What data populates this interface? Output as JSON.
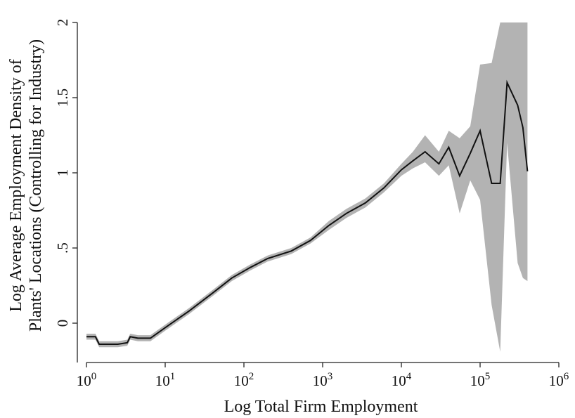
{
  "chart_data": {
    "type": "line",
    "xlabel": "Log Total Firm Employment",
    "ylabel_lines": [
      "Log Average Employment Density of",
      "Plants' Locations (Controlling for Industry)"
    ],
    "xscale": "log",
    "xlim": [
      0.9,
      1000000
    ],
    "ylim": [
      -0.27,
      2
    ],
    "grid": false,
    "legend": "none",
    "colors": {
      "line": "#111111",
      "band": "#b3b3b3"
    },
    "x_ticks": [
      {
        "value": 1,
        "base": "10",
        "exp": "0"
      },
      {
        "value": 10,
        "base": "10",
        "exp": "1"
      },
      {
        "value": 100,
        "base": "10",
        "exp": "2"
      },
      {
        "value": 1000,
        "base": "10",
        "exp": "3"
      },
      {
        "value": 10000,
        "base": "10",
        "exp": "4"
      },
      {
        "value": 100000,
        "base": "10",
        "exp": "5"
      },
      {
        "value": 1000000,
        "base": "10",
        "exp": "6"
      }
    ],
    "y_ticks": [
      {
        "value": 0,
        "label": "0"
      },
      {
        "value": 0.5,
        "label": ".5"
      },
      {
        "value": 1,
        "label": "1"
      },
      {
        "value": 1.5,
        "label": "1.5"
      },
      {
        "value": 2,
        "label": "2"
      }
    ],
    "series": [
      {
        "points": [
          {
            "x": 1,
            "y": -0.09,
            "lo": -0.11,
            "hi": -0.07
          },
          {
            "x": 1.3,
            "y": -0.09,
            "lo": -0.11,
            "hi": -0.07
          },
          {
            "x": 1.45,
            "y": -0.14,
            "lo": -0.16,
            "hi": -0.12
          },
          {
            "x": 2.5,
            "y": -0.14,
            "lo": -0.16,
            "hi": -0.12
          },
          {
            "x": 3.3,
            "y": -0.13,
            "lo": -0.15,
            "hi": -0.11
          },
          {
            "x": 3.6,
            "y": -0.09,
            "lo": -0.11,
            "hi": -0.07
          },
          {
            "x": 4.5,
            "y": -0.1,
            "lo": -0.12,
            "hi": -0.08
          },
          {
            "x": 6.5,
            "y": -0.1,
            "lo": -0.12,
            "hi": -0.08
          },
          {
            "x": 10,
            "y": -0.03,
            "lo": -0.05,
            "hi": -0.01
          },
          {
            "x": 20,
            "y": 0.08,
            "lo": 0.06,
            "hi": 0.1
          },
          {
            "x": 40,
            "y": 0.2,
            "lo": 0.18,
            "hi": 0.22
          },
          {
            "x": 70,
            "y": 0.3,
            "lo": 0.28,
            "hi": 0.32
          },
          {
            "x": 120,
            "y": 0.37,
            "lo": 0.35,
            "hi": 0.39
          },
          {
            "x": 200,
            "y": 0.43,
            "lo": 0.41,
            "hi": 0.45
          },
          {
            "x": 400,
            "y": 0.48,
            "lo": 0.46,
            "hi": 0.5
          },
          {
            "x": 700,
            "y": 0.55,
            "lo": 0.53,
            "hi": 0.57
          },
          {
            "x": 1200,
            "y": 0.65,
            "lo": 0.62,
            "hi": 0.68
          },
          {
            "x": 2000,
            "y": 0.73,
            "lo": 0.7,
            "hi": 0.76
          },
          {
            "x": 3500,
            "y": 0.8,
            "lo": 0.77,
            "hi": 0.83
          },
          {
            "x": 6000,
            "y": 0.9,
            "lo": 0.87,
            "hi": 0.93
          },
          {
            "x": 10000,
            "y": 1.02,
            "lo": 0.98,
            "hi": 1.06
          },
          {
            "x": 14000,
            "y": 1.08,
            "lo": 1.03,
            "hi": 1.14
          },
          {
            "x": 20000,
            "y": 1.14,
            "lo": 1.07,
            "hi": 1.25
          },
          {
            "x": 30000,
            "y": 1.06,
            "lo": 0.98,
            "hi": 1.14
          },
          {
            "x": 40000,
            "y": 1.17,
            "lo": 1.05,
            "hi": 1.28
          },
          {
            "x": 55000,
            "y": 0.98,
            "lo": 0.73,
            "hi": 1.23
          },
          {
            "x": 75000,
            "y": 1.13,
            "lo": 0.95,
            "hi": 1.31
          },
          {
            "x": 100000,
            "y": 1.28,
            "lo": 0.82,
            "hi": 1.72
          },
          {
            "x": 140000,
            "y": 0.93,
            "lo": 0.12,
            "hi": 1.73
          },
          {
            "x": 180000,
            "y": 0.93,
            "lo": -0.19,
            "hi": 2.0
          },
          {
            "x": 220000,
            "y": 1.6,
            "lo": 1.2,
            "hi": 2.0
          },
          {
            "x": 300000,
            "y": 1.45,
            "lo": 0.4,
            "hi": 2.0
          },
          {
            "x": 350000,
            "y": 1.3,
            "lo": 0.3,
            "hi": 2.0
          },
          {
            "x": 400000,
            "y": 1.01,
            "lo": 0.28,
            "hi": 2.0
          }
        ]
      }
    ]
  }
}
